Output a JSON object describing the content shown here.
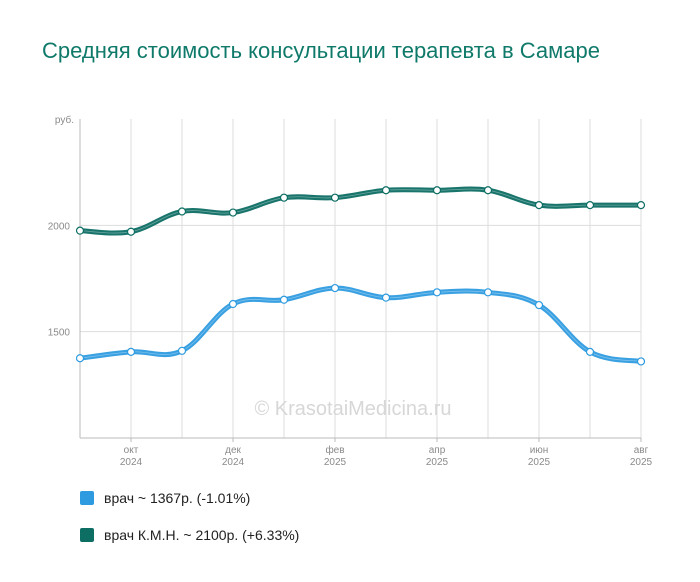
{
  "chart_data": {
    "type": "line",
    "title": "Средняя стоимость консультации терапевта в Самаре",
    "unit": "руб.",
    "watermark": "© KrasotaiMedicina.ru",
    "x": [
      "2024-09",
      "2024-10",
      "2024-11",
      "2024-12",
      "2025-01",
      "2025-02",
      "2025-03",
      "2025-04",
      "2025-05",
      "2025-06",
      "2025-07",
      "2025-08"
    ],
    "x_tick_labels": [
      {
        "index": 1,
        "month": "окт",
        "year": "2024"
      },
      {
        "index": 3,
        "month": "дек",
        "year": "2024"
      },
      {
        "index": 5,
        "month": "фев",
        "year": "2025"
      },
      {
        "index": 7,
        "month": "апр",
        "year": "2025"
      },
      {
        "index": 9,
        "month": "июн",
        "year": "2025"
      },
      {
        "index": 11,
        "month": "авг",
        "year": "2025"
      }
    ],
    "y_ticks": [
      1500,
      2000
    ],
    "ylim": [
      1000,
      2500
    ],
    "grid": true,
    "legend_position": "bottom-left",
    "series": [
      {
        "name": "врач",
        "color": "#2e9be0",
        "values": [
          1375,
          1405,
          1410,
          1630,
          1650,
          1705,
          1660,
          1685,
          1685,
          1625,
          1405,
          1360
        ],
        "legend": "врач ~ 1367р. (-1.01%)"
      },
      {
        "name": "врач К.М.Н.",
        "color": "#0d6e64",
        "values": [
          1975,
          1970,
          2065,
          2060,
          2130,
          2130,
          2165,
          2165,
          2165,
          2095,
          2095,
          2095
        ],
        "legend": "врач К.М.Н. ~ 2100р. (+6.33%)"
      }
    ]
  }
}
